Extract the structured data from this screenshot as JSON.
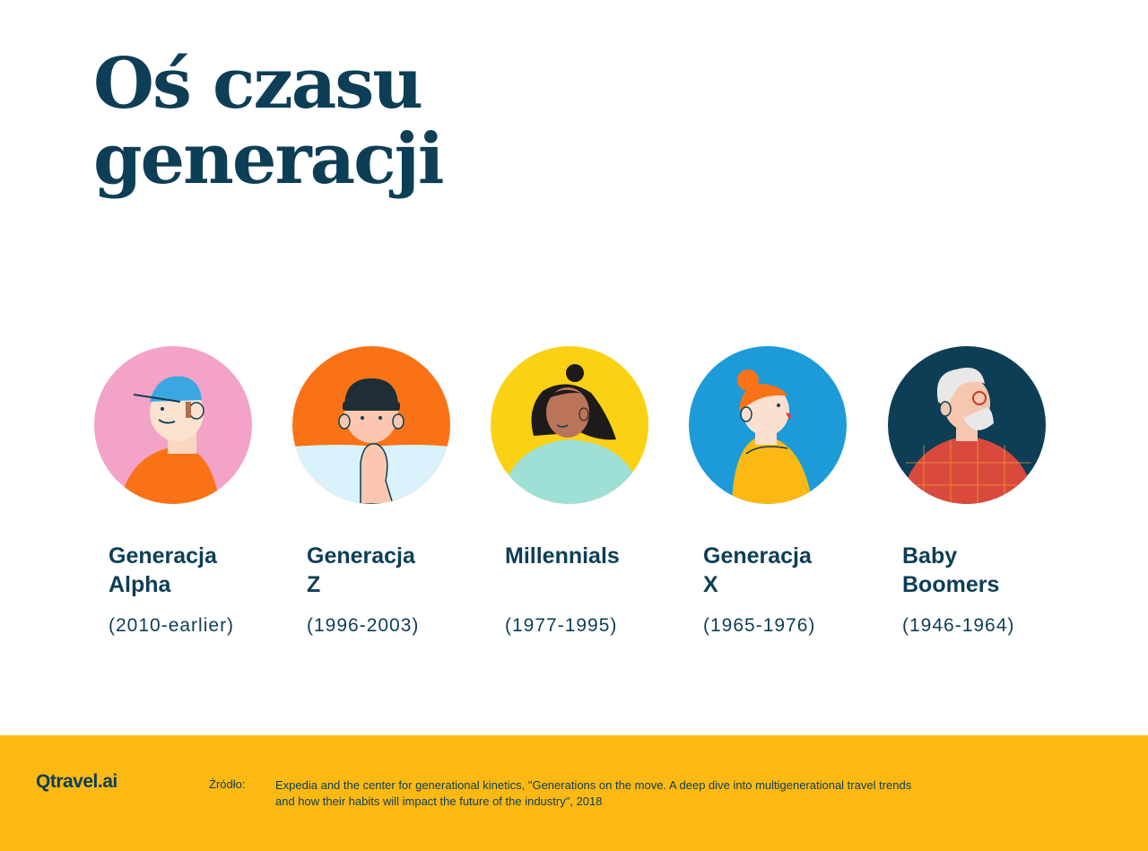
{
  "title": {
    "line1": "Oś czasu",
    "line2": "generacji"
  },
  "generations": [
    {
      "name_line1": "Generacja",
      "name_line2": "Alpha",
      "years": "(2010-earlier)",
      "icon": "gen-alpha-avatar-icon",
      "bg": "#f4a3c8"
    },
    {
      "name_line1": "Generacja",
      "name_line2": "Z",
      "years": "(1996-2003)",
      "icon": "gen-z-avatar-icon",
      "bg": "#f97316"
    },
    {
      "name_line1": "Millennials",
      "name_line2": "",
      "years": "(1977-1995)",
      "icon": "millennials-avatar-icon",
      "bg": "#fbd113"
    },
    {
      "name_line1": "Generacja",
      "name_line2": "X",
      "years": "(1965-1976)",
      "icon": "gen-x-avatar-icon",
      "bg": "#1d9bd9"
    },
    {
      "name_line1": "Baby",
      "name_line2": "Boomers",
      "years": "(1946-1964)",
      "icon": "baby-boomers-avatar-icon",
      "bg": "#0d3e56"
    }
  ],
  "footer": {
    "logo": "Qtravel.ai",
    "source_label": "Źródło:",
    "source_line1": "Expedia and the center for generational kinetics, \"Generations on the move. A deep dive into multigenerational travel trends",
    "source_line2": "and how their habits will impact the future of the industry\", 2018"
  },
  "colors": {
    "primary_text": "#0d3e56",
    "footer_bg": "#fcb913",
    "background": "#ffffff"
  }
}
